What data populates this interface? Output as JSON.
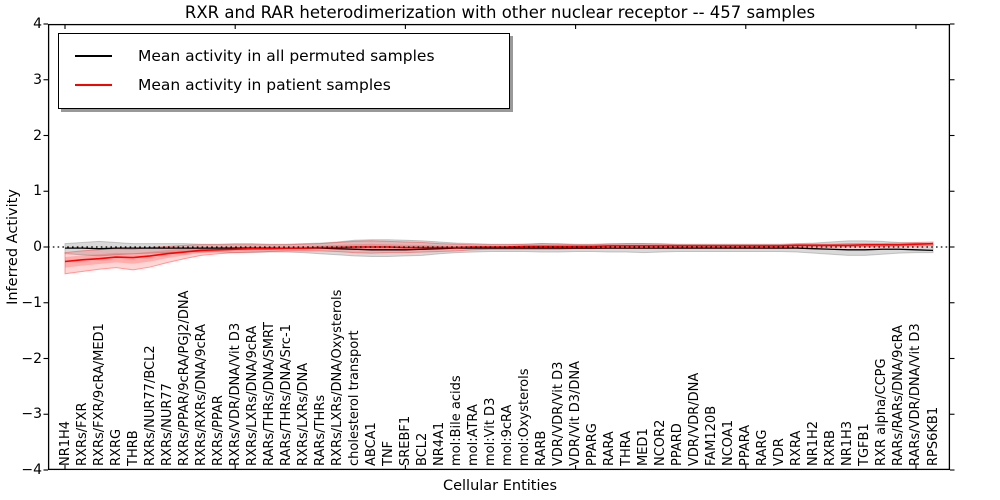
{
  "title": "RXR and RAR heterodimerization with other nuclear receptor -- 457 samples",
  "legend": {
    "items": [
      {
        "label": "Mean activity in all permuted samples",
        "color": "#000000"
      },
      {
        "label": "Mean activity in patient samples",
        "color": "#ff0000"
      }
    ]
  },
  "chart_data": {
    "type": "line",
    "title": "RXR and RAR heterodimerization with other nuclear receptor -- 457 samples",
    "xlabel": "Cellular Entities",
    "ylabel": "Inferred Activity",
    "ylim": [
      -4,
      4
    ],
    "yticks": [
      4,
      3,
      2,
      1,
      0,
      -1,
      -2,
      -3,
      -4
    ],
    "x_major_tick_indices": [
      0,
      10,
      20,
      30,
      40,
      50
    ],
    "grid": false,
    "legend_position": "upper left",
    "zero_reference_line": 0,
    "categories": [
      "NR1H4",
      "RXRs/FXR",
      "RXRs/FXR/9cRA/MED1",
      "RXRG",
      "THRB",
      "RXRs/NUR77/BCL2",
      "RXRs/NUR77",
      "RXRs/PPAR/9cRA/PGJ2/DNA",
      "RXRs/RXRs/DNA/9cRA",
      "RXRs/PPAR",
      "RXRs/VDR/DNA/Vit D3",
      "RXRs/LXRs/DNA/9cRA",
      "RARs/THRs/DNA/SMRT",
      "RARs/THRs/DNA/Src-1",
      "RXRs/LXRs/DNA",
      "RARs/THRs",
      "RXRs/LXRs/DNA/Oxysterols",
      "cholesterol transport",
      "ABCA1",
      "TNF",
      "SREBF1",
      "BCL2",
      "NR4A1",
      "mol:Bile acids",
      "mol:ATRA",
      "mol:Vit D3",
      "mol:9cRA",
      "mol:Oxysterols",
      "RARB",
      "VDR/VDR/Vit D3",
      "VDR/Vit D3/DNA",
      "PPARG",
      "RARA",
      "THRA",
      "MED1",
      "NCOR2",
      "PPARD",
      "VDR/VDR/DNA",
      "FAM120B",
      "NCOA1",
      "PPARA",
      "RARG",
      "VDR",
      "RXRA",
      "NR1H2",
      "RXRB",
      "NR1H3",
      "TGFB1",
      "RXR alpha/CCPG",
      "RARs/RARs/DNA/9cRA",
      "RARs/VDR/DNA/Vit D3",
      "RPS6KB1"
    ],
    "series": [
      {
        "name": "Mean activity in all permuted samples",
        "color": "#000000",
        "band_color": "rgba(130,130,130,0.30)",
        "values": [
          -0.02,
          -0.02,
          -0.03,
          -0.02,
          -0.02,
          -0.02,
          -0.02,
          -0.02,
          -0.02,
          -0.02,
          -0.02,
          -0.02,
          -0.02,
          -0.02,
          -0.02,
          -0.02,
          -0.03,
          -0.04,
          -0.05,
          -0.05,
          -0.05,
          -0.04,
          -0.03,
          -0.02,
          -0.02,
          -0.02,
          -0.02,
          -0.02,
          -0.02,
          -0.02,
          -0.02,
          -0.02,
          -0.02,
          -0.02,
          -0.02,
          -0.02,
          -0.02,
          -0.02,
          -0.02,
          -0.02,
          -0.02,
          -0.02,
          -0.02,
          -0.02,
          -0.03,
          -0.04,
          -0.05,
          -0.05,
          -0.04,
          -0.04,
          -0.05,
          -0.06
        ],
        "band_hi": [
          0.06,
          0.08,
          0.1,
          0.08,
          0.06,
          0.06,
          0.06,
          0.06,
          0.05,
          0.05,
          0.06,
          0.06,
          0.05,
          0.05,
          0.06,
          0.07,
          0.09,
          0.12,
          0.13,
          0.13,
          0.12,
          0.11,
          0.09,
          0.07,
          0.06,
          0.05,
          0.05,
          0.05,
          0.06,
          0.06,
          0.05,
          0.05,
          0.06,
          0.06,
          0.06,
          0.06,
          0.05,
          0.05,
          0.05,
          0.05,
          0.05,
          0.05,
          0.05,
          0.06,
          0.07,
          0.09,
          0.11,
          0.11,
          0.1,
          0.08,
          0.07,
          0.06
        ],
        "band_lo": [
          -0.12,
          -0.14,
          -0.16,
          -0.14,
          -0.12,
          -0.11,
          -0.1,
          -0.09,
          -0.09,
          -0.09,
          -0.1,
          -0.1,
          -0.09,
          -0.09,
          -0.1,
          -0.12,
          -0.14,
          -0.16,
          -0.17,
          -0.17,
          -0.16,
          -0.15,
          -0.12,
          -0.1,
          -0.09,
          -0.08,
          -0.08,
          -0.08,
          -0.09,
          -0.09,
          -0.08,
          -0.08,
          -0.09,
          -0.09,
          -0.1,
          -0.09,
          -0.08,
          -0.08,
          -0.08,
          -0.08,
          -0.08,
          -0.08,
          -0.08,
          -0.09,
          -0.11,
          -0.13,
          -0.15,
          -0.15,
          -0.13,
          -0.11,
          -0.1,
          -0.1
        ]
      },
      {
        "name": "Mean activity in patient samples",
        "color": "#ff0000",
        "band_color": "rgba(255,30,30,0.18)",
        "values": [
          -0.26,
          -0.23,
          -0.21,
          -0.18,
          -0.19,
          -0.16,
          -0.12,
          -0.09,
          -0.06,
          -0.05,
          -0.04,
          -0.03,
          -0.03,
          -0.02,
          -0.02,
          -0.01,
          -0.01,
          0.0,
          0.0,
          0.0,
          -0.01,
          -0.01,
          -0.01,
          -0.01,
          0.0,
          0.0,
          0.0,
          0.01,
          0.01,
          0.01,
          0.01,
          0.01,
          0.02,
          0.02,
          0.02,
          0.02,
          0.02,
          0.02,
          0.02,
          0.02,
          0.02,
          0.02,
          0.02,
          0.03,
          0.03,
          0.03,
          0.03,
          0.04,
          0.04,
          0.04,
          0.05,
          0.06
        ],
        "band_hi": [
          -0.1,
          -0.07,
          -0.05,
          -0.03,
          -0.04,
          -0.01,
          0.01,
          0.03,
          0.04,
          0.04,
          0.04,
          0.04,
          0.04,
          0.04,
          0.05,
          0.06,
          0.08,
          0.1,
          0.11,
          0.1,
          0.09,
          0.08,
          0.06,
          0.05,
          0.04,
          0.04,
          0.04,
          0.05,
          0.06,
          0.05,
          0.04,
          0.04,
          0.05,
          0.06,
          0.06,
          0.05,
          0.04,
          0.04,
          0.04,
          0.04,
          0.04,
          0.04,
          0.04,
          0.05,
          0.05,
          0.05,
          0.06,
          0.06,
          0.06,
          0.07,
          0.08,
          0.09
        ],
        "band_lo": [
          -0.48,
          -0.44,
          -0.4,
          -0.37,
          -0.41,
          -0.36,
          -0.28,
          -0.21,
          -0.15,
          -0.12,
          -0.1,
          -0.09,
          -0.08,
          -0.07,
          -0.07,
          -0.07,
          -0.08,
          -0.1,
          -0.11,
          -0.1,
          -0.1,
          -0.09,
          -0.08,
          -0.07,
          -0.05,
          -0.04,
          -0.04,
          -0.04,
          -0.04,
          -0.04,
          -0.03,
          -0.03,
          -0.02,
          -0.02,
          -0.02,
          -0.02,
          -0.01,
          -0.01,
          -0.01,
          -0.01,
          -0.01,
          0.0,
          0.0,
          0.0,
          0.0,
          0.0,
          0.01,
          0.01,
          0.01,
          0.02,
          0.02,
          0.03
        ]
      }
    ]
  }
}
